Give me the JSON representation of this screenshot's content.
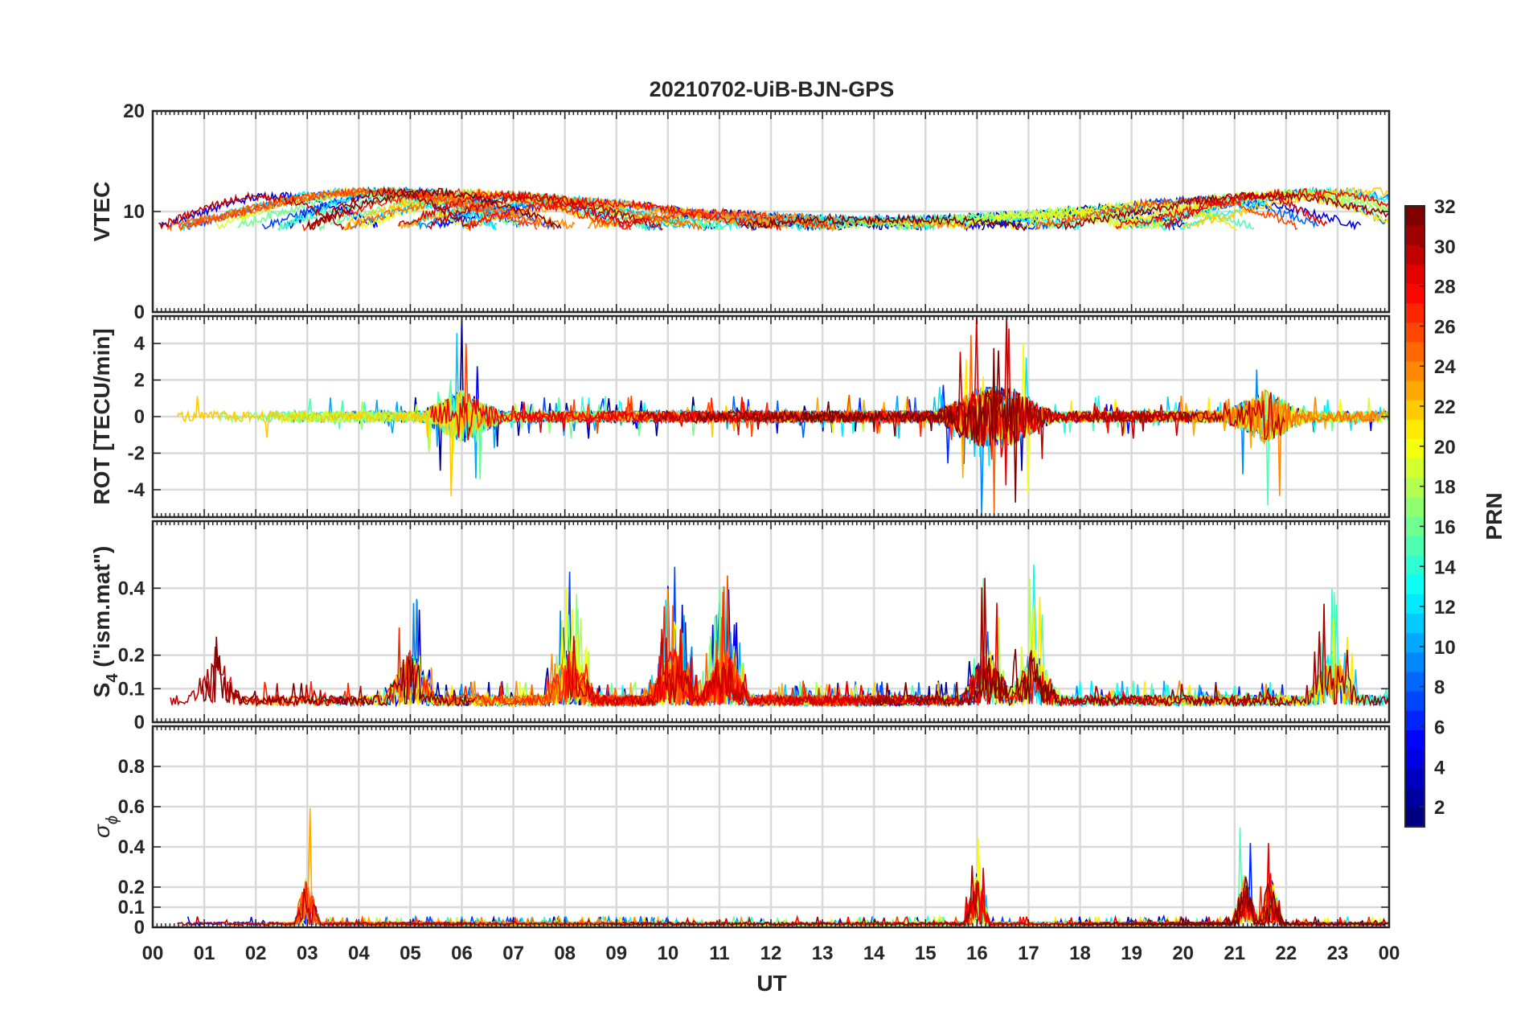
{
  "chart_data": {
    "type": "line",
    "title": "20210702-UiB-BJN-GPS",
    "xlabel": "UT",
    "x_tick_labels": [
      "00",
      "01",
      "02",
      "03",
      "04",
      "05",
      "06",
      "07",
      "08",
      "09",
      "10",
      "11",
      "12",
      "13",
      "14",
      "15",
      "16",
      "17",
      "18",
      "19",
      "20",
      "21",
      "22",
      "23",
      "00"
    ],
    "xlim": [
      0,
      24
    ],
    "grid": true,
    "panels": [
      {
        "id": "vtec",
        "ylabel": "VTEC",
        "ylim": [
          0,
          20
        ],
        "yticks": [
          0,
          10,
          20
        ],
        "ytick_labels": [
          "0",
          "10",
          "20"
        ],
        "baseline": 10,
        "amplitude": 3.5,
        "event_hours": [
          16.0,
          21.6
        ]
      },
      {
        "id": "rot",
        "ylabel": "ROT [TECU/min]",
        "ylim": [
          -5.5,
          5.5
        ],
        "yticks": [
          -4,
          -2,
          0,
          2,
          4
        ],
        "ytick_labels": [
          "-4",
          "-2",
          "0",
          "2",
          "4"
        ],
        "baseline": 0,
        "amplitude": 4.5,
        "event_hours": [
          6.0,
          16.0,
          16.7,
          21.6
        ]
      },
      {
        "id": "s4",
        "ylabel_main": "S",
        "ylabel_sub": "4",
        "ylabel_rest": " (\"ism.mat\")",
        "ylim": [
          0,
          0.6
        ],
        "yticks": [
          0,
          0.1,
          0.2,
          0.4
        ],
        "ytick_labels": [
          "0",
          "0.1",
          "0.2",
          "0.4"
        ],
        "baseline": 0.07,
        "amplitude": 0.5,
        "event_hours": [
          1.2,
          5.0,
          8.1,
          10.1,
          11.1,
          16.2,
          17.1,
          22.9
        ]
      },
      {
        "id": "sigma_phi",
        "ylabel_main": "σ",
        "ylabel_sub": "ϕ",
        "ylim": [
          0,
          1
        ],
        "yticks": [
          0,
          0.1,
          0.2,
          0.4,
          0.6,
          0.8
        ],
        "ytick_labels": [
          "0",
          "0.1",
          "0.2",
          "0.4",
          "0.6",
          "0.8"
        ],
        "baseline": 0.02,
        "amplitude": 0.96,
        "event_hours": [
          3.0,
          16.0,
          21.2,
          21.7
        ]
      }
    ],
    "colorbar": {
      "label": "PRN",
      "colormap": "jet",
      "range": [
        1,
        32
      ],
      "ticks": [
        2,
        4,
        6,
        8,
        10,
        12,
        14,
        16,
        18,
        20,
        22,
        24,
        26,
        28,
        30,
        32
      ],
      "tick_labels": [
        "2",
        "4",
        "6",
        "8",
        "10",
        "12",
        "14",
        "16",
        "18",
        "20",
        "22",
        "24",
        "26",
        "28",
        "30",
        "32"
      ]
    },
    "colors": {
      "axis": "#262626",
      "grid": "#d9d9d9",
      "background": "#ffffff"
    }
  }
}
